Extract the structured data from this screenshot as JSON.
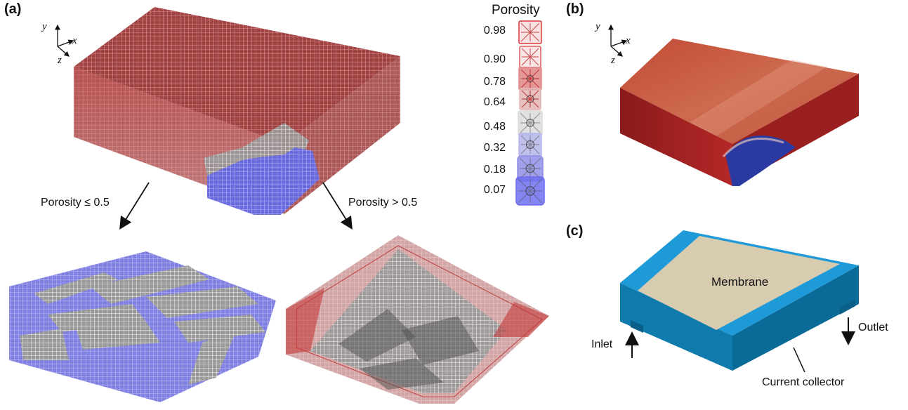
{
  "panels": {
    "a": {
      "label": "(a)",
      "axes": {
        "y": "y",
        "x": "x",
        "z": "z"
      },
      "split_left": "Porosity ≤ 0.5",
      "split_right": "Porosity > 0.5"
    },
    "b": {
      "label": "(b)",
      "axes": {
        "y": "y",
        "x": "x",
        "z": "z"
      }
    },
    "c": {
      "label": "(c)",
      "membrane": "Membrane",
      "inlet": "Inlet",
      "outlet": "Outlet",
      "current_collector": "Current collector"
    }
  },
  "legend": {
    "title": "Porosity",
    "values": [
      "0.98",
      "0.90",
      "0.78",
      "0.64",
      "0.48",
      "0.32",
      "0.18",
      "0.07"
    ],
    "colors": [
      "#d9383a",
      "#dc5a5a",
      "#e08585",
      "#e3b5b5",
      "#dcdcdc",
      "#b5b5ea",
      "#8f8fe8",
      "#6e6ef0"
    ]
  },
  "colors": {
    "red": "#c03a35",
    "blue": "#5a5ad8",
    "device_blue": "#0d6e9e",
    "membrane": "#d8ccb0",
    "edge_blue": "#1a9ad6"
  }
}
